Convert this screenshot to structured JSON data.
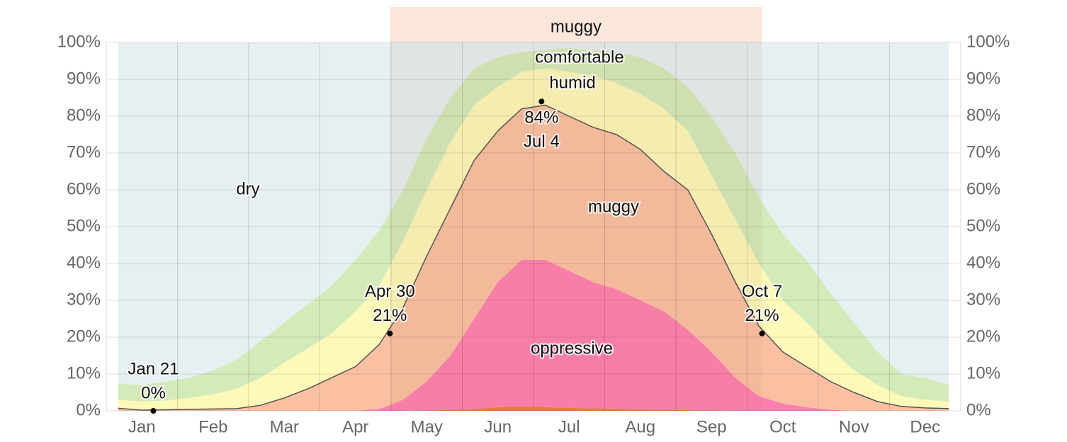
{
  "chart_data": {
    "type": "stacked-area",
    "categories": [
      null,
      "Jan",
      null,
      null,
      "Feb",
      null,
      null,
      "Mar",
      null,
      null,
      "Apr",
      null,
      null,
      "May",
      null,
      null,
      "Jun",
      null,
      null,
      "Jul",
      null,
      null,
      "Aug",
      null,
      null,
      "Sep",
      null,
      null,
      "Oct",
      null,
      null,
      "Nov",
      null,
      null,
      "Dec",
      null
    ],
    "series": [
      {
        "color": "#f5773c",
        "values": [
          0,
          0,
          0,
          0,
          0,
          0,
          0,
          0,
          0,
          0,
          0,
          0,
          0,
          0.1,
          0.3,
          0.5,
          1,
          1.2,
          1,
          0.8,
          0.7,
          0.6,
          0.4,
          0.3,
          0.2,
          0.1,
          0,
          0,
          0,
          0,
          0,
          0,
          0,
          0,
          0,
          0
        ]
      },
      {
        "name": "oppressive",
        "color": "#ff7eb0",
        "values": [
          0,
          0,
          0,
          0,
          0,
          0,
          0,
          0,
          0,
          0,
          0,
          0.5,
          3,
          7.9,
          14.7,
          24.5,
          34,
          39.8,
          40,
          37.2,
          34.3,
          32.4,
          29.6,
          26.7,
          21.8,
          15.9,
          9,
          4,
          2,
          1,
          0.3,
          0,
          0,
          0,
          0,
          0
        ]
      },
      {
        "name": "muggy",
        "color": "#fbc0a2",
        "line_color": "#555555",
        "values": [
          0.7,
          0.2,
          0.3,
          0.4,
          0.5,
          0.6,
          1.5,
          3.5,
          6,
          9,
          12,
          17.5,
          25,
          34,
          40,
          43,
          41,
          41,
          42,
          42,
          42,
          42,
          41,
          38,
          38,
          32,
          26,
          19,
          14,
          11,
          7.7,
          5,
          2.5,
          1.2,
          0.8,
          0.6
        ]
      },
      {
        "name": "humid",
        "color": "#fdf9b8",
        "values": [
          2.3,
          2.3,
          2.5,
          3.1,
          4,
          5.4,
          7.5,
          9.5,
          11,
          12,
          15,
          16,
          18,
          18,
          18,
          15,
          12,
          10,
          10,
          12,
          14,
          14,
          15,
          17,
          16,
          16,
          17,
          17,
          14,
          12,
          9,
          6,
          4.5,
          2.8,
          2.2,
          1.9
        ]
      },
      {
        "name": "comfortable",
        "color": "#d3ebb9",
        "values": [
          4.5,
          4.5,
          5.2,
          5.5,
          6.5,
          8,
          10,
          11,
          12,
          13,
          14,
          15,
          14,
          14,
          12,
          10,
          8,
          5.5,
          5,
          6.5,
          7,
          8.5,
          10,
          11,
          12,
          16,
          18,
          18,
          18,
          17,
          15,
          13,
          9,
          6,
          6,
          4.5
        ]
      },
      {
        "name": "dry",
        "color": "#e6f0f3",
        "values": [
          92.5,
          93,
          92,
          91,
          89,
          86,
          81,
          76,
          71,
          66,
          59,
          51,
          40,
          26,
          15,
          7,
          4,
          2.5,
          2,
          1.5,
          2,
          2.5,
          4,
          7,
          12,
          20,
          30,
          42,
          52,
          59,
          68,
          76,
          84,
          90,
          91,
          93
        ]
      }
    ],
    "ylim": [
      0,
      100
    ],
    "yticks": [
      {
        "value": 0,
        "label": "0%"
      },
      {
        "value": 10,
        "label": "10%"
      },
      {
        "value": 20,
        "label": "20%"
      },
      {
        "value": 30,
        "label": "30%"
      },
      {
        "value": 40,
        "label": "40%"
      },
      {
        "value": 50,
        "label": "50%"
      },
      {
        "value": 60,
        "label": "60%"
      },
      {
        "value": 70,
        "label": "70%"
      },
      {
        "value": 80,
        "label": "80%"
      },
      {
        "value": 90,
        "label": "90%"
      },
      {
        "value": 100,
        "label": "100%"
      }
    ],
    "grid": true,
    "season": {
      "label": "muggy",
      "color": "#fde6db"
    },
    "annotations": [
      {
        "date": "Jan 21",
        "value": 0,
        "value_label": "0%"
      },
      {
        "date": "Apr 30",
        "value": 21,
        "value_label": "21%"
      },
      {
        "date": "Jul 4",
        "value": 84,
        "value_label": "84%"
      },
      {
        "date": "Oct 7",
        "value": 21,
        "value_label": "21%"
      }
    ]
  }
}
